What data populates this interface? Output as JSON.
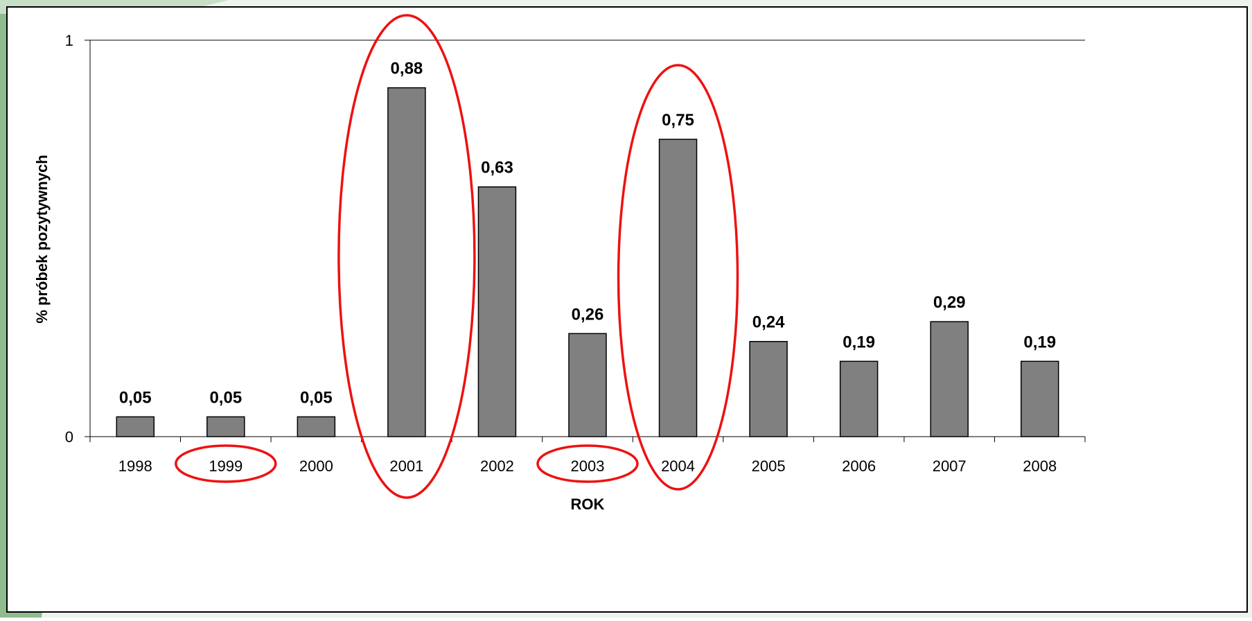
{
  "chart_data": {
    "type": "bar",
    "categories": [
      "1998",
      "1999",
      "2000",
      "2001",
      "2002",
      "2003",
      "2004",
      "2005",
      "2006",
      "2007",
      "2008"
    ],
    "values": [
      0.05,
      0.05,
      0.05,
      0.88,
      0.63,
      0.26,
      0.75,
      0.24,
      0.19,
      0.29,
      0.19
    ],
    "data_labels": [
      "0,05",
      "0,05",
      "0,05",
      "0,88",
      "0,63",
      "0,26",
      "0,75",
      "0,24",
      "0,19",
      "0,29",
      "0,19"
    ],
    "xlabel": "ROK",
    "ylabel": "% próbek pozytywnych",
    "ylim": [
      0,
      1
    ],
    "y_ticks": [
      "0",
      "1"
    ],
    "grid": true,
    "highlighted_years": [
      "1999",
      "2001",
      "2003",
      "2004"
    ]
  },
  "colors": {
    "bar_fill": "#808080",
    "bar_stroke": "#000000",
    "highlight_ellipse": "#ee1111",
    "frame_border": "#000000",
    "background_green": "#8fbc8f",
    "background_green_light": "#c7dfc7"
  }
}
